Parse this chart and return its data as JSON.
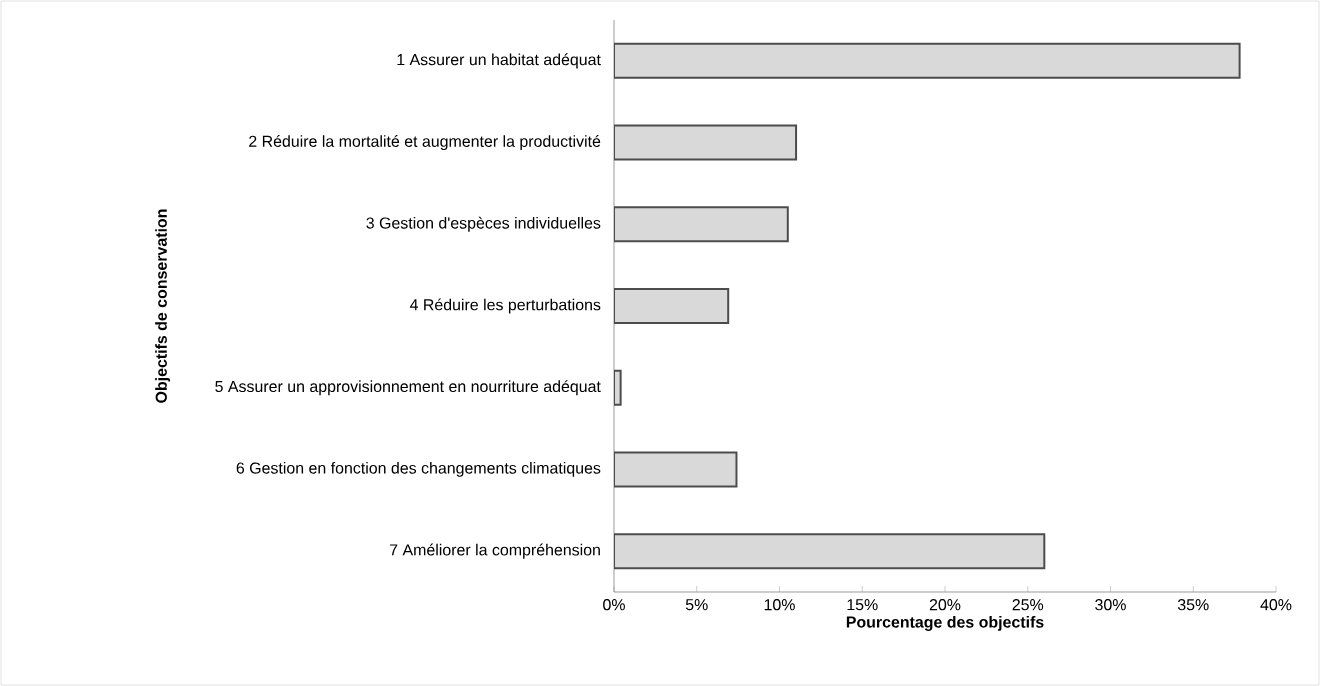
{
  "chart_data": {
    "type": "bar",
    "orientation": "horizontal",
    "xlabel": "Pourcentage des objectifs",
    "ylabel": "Objectifs de conservation",
    "categories": [
      "1 Assurer un habitat adéquat",
      "2 Réduire la mortalité et augmenter la productivité",
      "3 Gestion d'espèces individuelles",
      "4 Réduire les perturbations",
      "5 Assurer un approvisionnement en nourriture adéquat",
      "6 Gestion en fonction des changements climatiques",
      "7 Améliorer la compréhension"
    ],
    "values": [
      37.8,
      11.0,
      10.5,
      6.9,
      0.4,
      7.4,
      26.0
    ],
    "color": "#d9d9d9",
    "xlim": [
      0,
      40
    ],
    "xticks": [
      {
        "value": 0,
        "label": "0%"
      },
      {
        "value": 5,
        "label": "5%"
      },
      {
        "value": 10,
        "label": "10%"
      },
      {
        "value": 15,
        "label": "15%"
      },
      {
        "value": 20,
        "label": "20%"
      },
      {
        "value": 25,
        "label": "25%"
      },
      {
        "value": 30,
        "label": "30%"
      },
      {
        "value": 35,
        "label": "35%"
      },
      {
        "value": 40,
        "label": "40%"
      }
    ],
    "grid": false
  }
}
